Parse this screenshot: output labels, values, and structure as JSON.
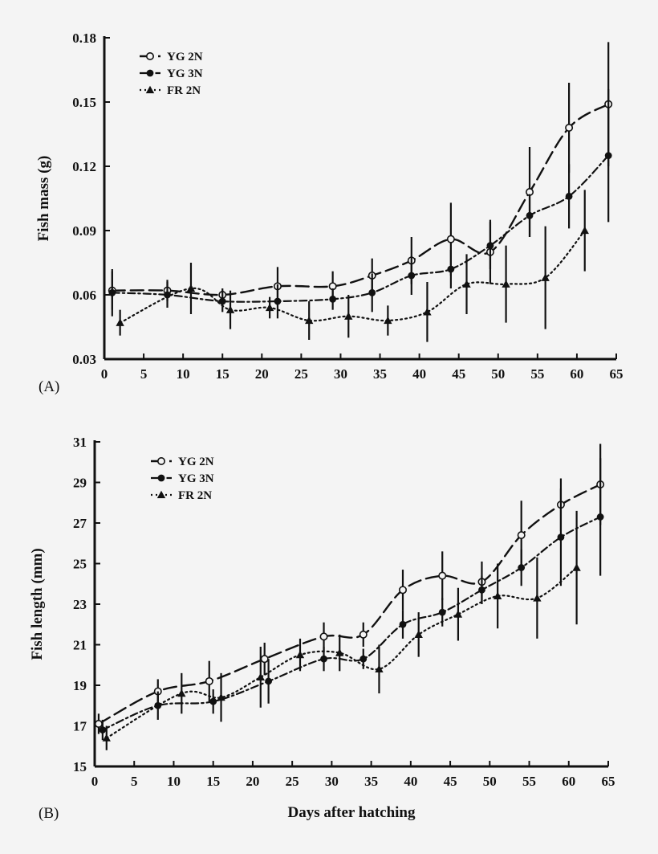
{
  "chart_data": [
    {
      "type": "line",
      "panel_label": "(A)",
      "xlabel": "",
      "ylabel": "Fish mass (g)",
      "xlim": [
        0,
        65
      ],
      "ylim": [
        0.03,
        0.18
      ],
      "xticks": [
        0,
        5,
        10,
        15,
        20,
        25,
        30,
        35,
        40,
        45,
        50,
        55,
        60,
        65
      ],
      "yticks": [
        "0.03",
        "0.06",
        "0.09",
        "0.12",
        "0.15",
        "0.18"
      ],
      "grid": false,
      "legend_position": "top-left",
      "series": [
        {
          "name": "YG 2N",
          "marker": "open-circle",
          "line": "long-dash",
          "points": [
            [
              1,
              0.062,
              0.009
            ],
            [
              8,
              0.062,
              0.005
            ],
            [
              15,
              0.06,
              0.003
            ],
            [
              22,
              0.064,
              0.009
            ],
            [
              29,
              0.064,
              0.007
            ],
            [
              34,
              0.069,
              0.008
            ],
            [
              39,
              0.076,
              0.011
            ],
            [
              44,
              0.086,
              0.017
            ],
            [
              49,
              0.08,
              0.015
            ],
            [
              54,
              0.108,
              0.021
            ],
            [
              59,
              0.138,
              0.021
            ],
            [
              64,
              0.149,
              0.029
            ]
          ]
        },
        {
          "name": "YG 3N",
          "marker": "filled-circle",
          "line": "dash-dot",
          "points": [
            [
              1,
              0.061,
              0.011
            ],
            [
              8,
              0.06,
              0.006
            ],
            [
              15,
              0.057,
              0.005
            ],
            [
              22,
              0.057,
              0.008
            ],
            [
              29,
              0.058,
              0.005
            ],
            [
              34,
              0.061,
              0.009
            ],
            [
              39,
              0.069,
              0.009
            ],
            [
              44,
              0.072,
              0.009
            ],
            [
              49,
              0.083,
              0.011
            ],
            [
              54,
              0.097,
              0.01
            ],
            [
              59,
              0.106,
              0.015
            ],
            [
              64,
              0.125,
              0.031
            ]
          ]
        },
        {
          "name": "FR 2N",
          "marker": "filled-triangle",
          "line": "dotted",
          "points": [
            [
              2,
              0.047,
              0.006
            ],
            [
              11,
              0.063,
              0.012
            ],
            [
              16,
              0.053,
              0.009
            ],
            [
              21,
              0.054,
              0.005
            ],
            [
              26,
              0.048,
              0.009
            ],
            [
              31,
              0.05,
              0.01
            ],
            [
              36,
              0.048,
              0.007
            ],
            [
              41,
              0.052,
              0.014
            ],
            [
              46,
              0.065,
              0.014
            ],
            [
              51,
              0.065,
              0.018
            ],
            [
              56,
              0.068,
              0.024
            ],
            [
              61,
              0.09,
              0.019
            ]
          ]
        }
      ]
    },
    {
      "type": "line",
      "panel_label": "(B)",
      "xlabel": "Days after hatching",
      "ylabel": "Fish length (mm)",
      "xlim": [
        0,
        65
      ],
      "ylim": [
        15,
        31
      ],
      "xticks": [
        0,
        5,
        10,
        15,
        20,
        25,
        30,
        35,
        40,
        45,
        50,
        55,
        60,
        65
      ],
      "yticks": [
        "15",
        "17",
        "19",
        "21",
        "23",
        "25",
        "27",
        "29",
        "31"
      ],
      "grid": false,
      "legend_position": "top-left",
      "series": [
        {
          "name": "YG 2N",
          "marker": "open-circle",
          "line": "long-dash",
          "points": [
            [
              0.5,
              17.1,
              0.5
            ],
            [
              8,
              18.7,
              0.6
            ],
            [
              14.5,
              19.2,
              1.0
            ],
            [
              21.5,
              20.3,
              0.8
            ],
            [
              29,
              21.4,
              0.7
            ],
            [
              34,
              21.5,
              0.6
            ],
            [
              39,
              23.7,
              1.0
            ],
            [
              44,
              24.4,
              1.2
            ],
            [
              49,
              24.1,
              1.0
            ],
            [
              54,
              26.4,
              1.7
            ],
            [
              59,
              27.9,
              1.3
            ],
            [
              64,
              28.9,
              2.0
            ]
          ]
        },
        {
          "name": "YG 3N",
          "marker": "filled-circle",
          "line": "dash-dot",
          "points": [
            [
              1,
              16.8,
              0.5
            ],
            [
              8,
              18.0,
              0.7
            ],
            [
              15,
              18.2,
              0.6
            ],
            [
              22,
              19.2,
              1.1
            ],
            [
              29,
              20.3,
              0.6
            ],
            [
              34,
              20.3,
              0.5
            ],
            [
              39,
              22.0,
              0.7
            ],
            [
              44,
              22.6,
              0.7
            ],
            [
              49,
              23.7,
              0.7
            ],
            [
              54,
              24.8,
              0.9
            ],
            [
              59,
              26.3,
              2.4
            ],
            [
              64,
              27.3,
              2.9
            ]
          ]
        },
        {
          "name": "FR 2N",
          "marker": "filled-triangle",
          "line": "dotted",
          "points": [
            [
              1.5,
              16.4,
              0.6
            ],
            [
              11,
              18.6,
              1.0
            ],
            [
              16,
              18.4,
              1.2
            ],
            [
              21,
              19.4,
              1.5
            ],
            [
              26,
              20.5,
              0.8
            ],
            [
              31,
              20.6,
              0.9
            ],
            [
              36,
              19.8,
              1.2
            ],
            [
              41,
              21.5,
              1.1
            ],
            [
              46,
              22.5,
              1.3
            ],
            [
              51,
              23.4,
              1.6
            ],
            [
              56,
              23.3,
              2.0
            ],
            [
              61,
              24.8,
              2.8
            ]
          ]
        }
      ]
    }
  ]
}
